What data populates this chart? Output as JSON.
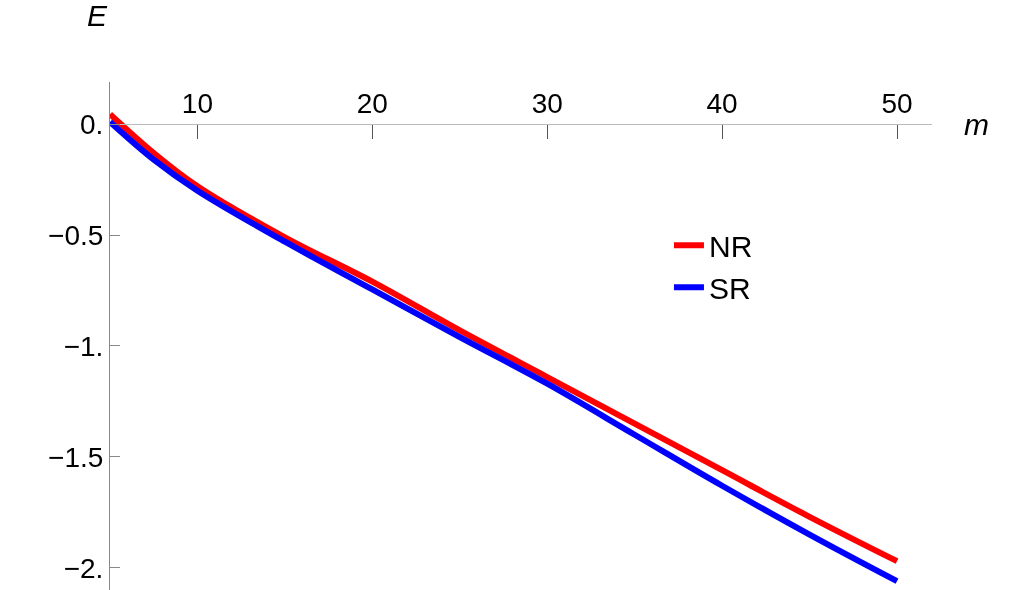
{
  "chart_data": {
    "type": "line",
    "xlabel": "m",
    "ylabel": "E",
    "x": [
      5,
      7.5,
      10,
      15,
      20,
      25,
      30,
      35,
      40,
      45,
      50
    ],
    "series": [
      {
        "name": "NR",
        "color": "#ff0000",
        "values": [
          0.045,
          -0.13,
          -0.28,
          -0.51,
          -0.71,
          -0.93,
          -1.14,
          -1.35,
          -1.56,
          -1.77,
          -1.97
        ]
      },
      {
        "name": "SR",
        "color": "#0000ff",
        "values": [
          0.01,
          -0.16,
          -0.3,
          -0.53,
          -0.745,
          -0.96,
          -1.17,
          -1.4,
          -1.63,
          -1.85,
          -2.06
        ]
      }
    ],
    "xlim": [
      5,
      52
    ],
    "ylim": [
      -2.1,
      0.19
    ],
    "xticks": [
      10,
      20,
      30,
      40,
      50
    ],
    "yticks": [
      {
        "value": 0,
        "label": "0."
      },
      {
        "value": -0.5,
        "label": "−0.5"
      },
      {
        "value": -1,
        "label": "−1."
      },
      {
        "value": -1.5,
        "label": "−1.5"
      },
      {
        "value": -2,
        "label": "−2."
      }
    ],
    "legend": "right",
    "marker": "none",
    "line_style": "solid"
  }
}
